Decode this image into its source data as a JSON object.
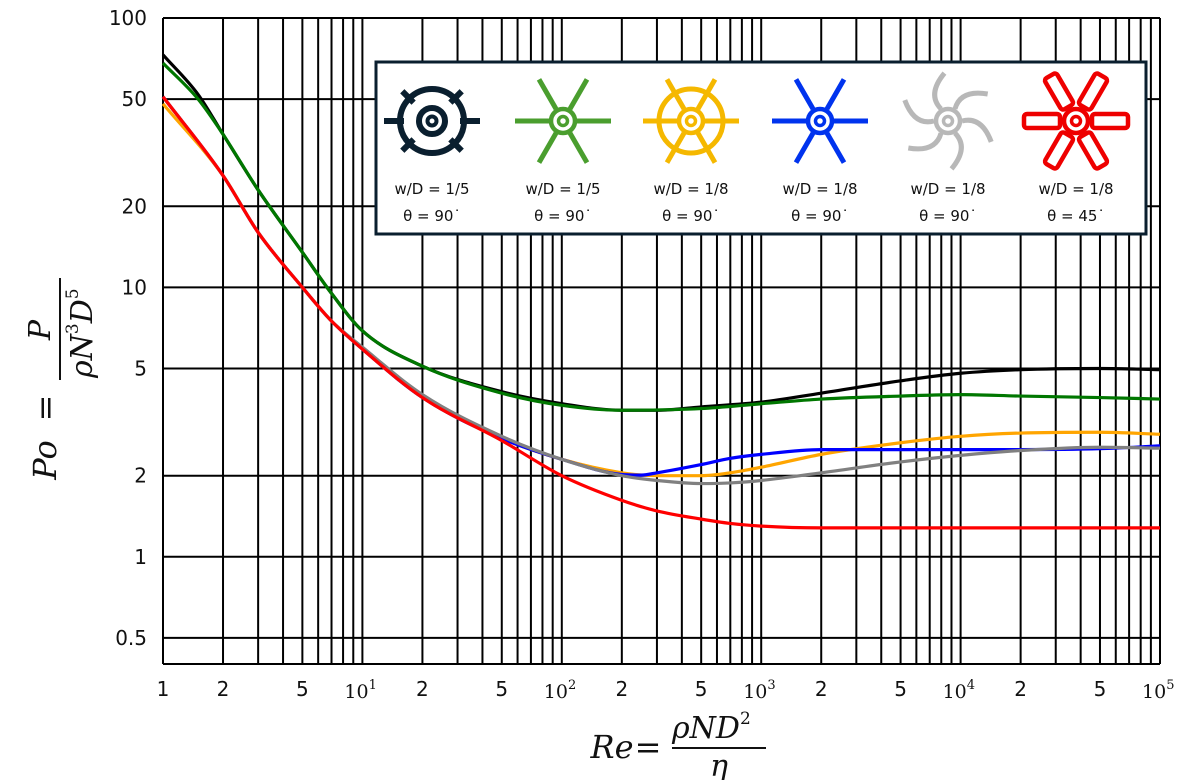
{
  "chart_data": {
    "type": "line",
    "title": "",
    "xscale": "log",
    "yscale": "log",
    "xlim": [
      1,
      100000
    ],
    "ylim": [
      0.4,
      100
    ],
    "grid": true,
    "legend_placement": "top-right",
    "xlabel": {
      "lhs": "Re",
      "eq": "=",
      "num": "ρND",
      "num_exp": "2",
      "den": "η"
    },
    "ylabel": {
      "lhs": "Po",
      "eq": "=",
      "num": "P",
      "den_base": "ρN",
      "den_exp1": "3",
      "den_mid": "D",
      "den_exp2": "5"
    },
    "x_ticks_plain": [
      {
        "value": 1,
        "label": "1"
      },
      {
        "value": 2,
        "label": "2"
      },
      {
        "value": 5,
        "label": "5"
      },
      {
        "value": 20,
        "label": "2"
      },
      {
        "value": 50,
        "label": "5"
      },
      {
        "value": 200,
        "label": "2"
      },
      {
        "value": 500,
        "label": "5"
      },
      {
        "value": 2000,
        "label": "2"
      },
      {
        "value": 5000,
        "label": "5"
      },
      {
        "value": 20000,
        "label": "2"
      },
      {
        "value": 50000,
        "label": "5"
      }
    ],
    "x_ticks_power": [
      {
        "value": 10,
        "base": "10",
        "exp": "1"
      },
      {
        "value": 100,
        "base": "10",
        "exp": "2"
      },
      {
        "value": 1000,
        "base": "10",
        "exp": "3"
      },
      {
        "value": 10000,
        "base": "10",
        "exp": "4"
      },
      {
        "value": 100000,
        "base": "10",
        "exp": "5"
      }
    ],
    "y_ticks": [
      {
        "value": 100,
        "label": "100"
      },
      {
        "value": 50,
        "label": "50"
      },
      {
        "value": 20,
        "label": "20"
      },
      {
        "value": 10,
        "label": "10"
      },
      {
        "value": 5,
        "label": "5"
      },
      {
        "value": 2,
        "label": "2"
      },
      {
        "value": 1,
        "label": "1"
      },
      {
        "value": 0.5,
        "label": "0.5"
      }
    ],
    "x_gridlines": [
      1,
      2,
      3,
      4,
      5,
      6,
      7,
      8,
      9,
      10,
      20,
      30,
      40,
      50,
      60,
      70,
      80,
      90,
      100,
      200,
      300,
      400,
      500,
      600,
      700,
      800,
      900,
      1000,
      2000,
      3000,
      4000,
      5000,
      6000,
      7000,
      8000,
      9000,
      10000,
      20000,
      30000,
      40000,
      50000,
      60000,
      70000,
      80000,
      90000,
      100000
    ],
    "y_gridlines": [
      0.5,
      1,
      2,
      5,
      10,
      20,
      50,
      100
    ],
    "series": [
      {
        "color": "#000000",
        "x": [
          1,
          1.5,
          2,
          3,
          5,
          7,
          10,
          20,
          50,
          100,
          200,
          300,
          500,
          1000,
          2000,
          5000,
          10000,
          20000,
          50000,
          100000
        ],
        "y": [
          73,
          52,
          37,
          23,
          13.5,
          9.5,
          6.9,
          5.1,
          4.1,
          3.7,
          3.5,
          3.5,
          3.6,
          3.75,
          4.05,
          4.5,
          4.8,
          4.95,
          5.0,
          4.95
        ]
      },
      {
        "color": "#007700",
        "x": [
          1,
          1.5,
          2,
          3,
          5,
          7,
          10,
          20,
          50,
          100,
          200,
          500,
          1000,
          2000,
          5000,
          10000,
          20000,
          50000,
          100000
        ],
        "y": [
          68,
          50,
          37,
          23,
          13.5,
          9.5,
          6.9,
          5.1,
          4.05,
          3.65,
          3.5,
          3.55,
          3.7,
          3.85,
          3.95,
          4.0,
          3.95,
          3.9,
          3.85
        ]
      },
      {
        "color": "#ffa500",
        "x": [
          1,
          2,
          3,
          5,
          7,
          10,
          20,
          50,
          100,
          200,
          300,
          500,
          700,
          1000,
          2000,
          5000,
          10000,
          20000,
          50000,
          100000
        ],
        "y": [
          48,
          26,
          16,
          10,
          7.5,
          5.9,
          3.9,
          2.75,
          2.3,
          2.05,
          2.0,
          2.0,
          2.05,
          2.15,
          2.4,
          2.65,
          2.8,
          2.88,
          2.9,
          2.85
        ]
      },
      {
        "color": "#0000ff",
        "x": [
          1,
          2,
          3,
          5,
          7,
          10,
          20,
          50,
          100,
          200,
          250,
          300,
          500,
          700,
          1000,
          2000,
          5000,
          10000,
          20000,
          50000,
          100000
        ],
        "y": [
          51,
          26,
          16,
          10,
          7.5,
          5.9,
          3.9,
          2.75,
          2.3,
          2.02,
          2.01,
          2.05,
          2.2,
          2.32,
          2.4,
          2.5,
          2.5,
          2.5,
          2.5,
          2.52,
          2.58
        ]
      },
      {
        "color": "#808080",
        "x": [
          1,
          2,
          3,
          5,
          7,
          10,
          20,
          50,
          100,
          200,
          300,
          500,
          700,
          1000,
          2000,
          5000,
          10000,
          20000,
          50000,
          100000
        ],
        "y": [
          51,
          26,
          16,
          10,
          7.5,
          6.0,
          4.0,
          2.8,
          2.3,
          2.0,
          1.92,
          1.87,
          1.88,
          1.92,
          2.05,
          2.25,
          2.38,
          2.48,
          2.55,
          2.53
        ]
      },
      {
        "color": "#ff0000",
        "x": [
          1,
          2,
          3,
          5,
          7,
          10,
          20,
          50,
          100,
          200,
          300,
          500,
          700,
          1000,
          2000,
          5000,
          10000,
          20000,
          50000,
          100000
        ],
        "y": [
          51,
          26,
          16,
          10,
          7.5,
          5.9,
          3.9,
          2.7,
          2.0,
          1.62,
          1.48,
          1.38,
          1.33,
          1.3,
          1.28,
          1.28,
          1.28,
          1.28,
          1.28,
          1.28
        ]
      }
    ],
    "legend": [
      {
        "icon": "rushton-turbine-icon",
        "color": "#0a1f2f",
        "w_d": "w/D = 1/5",
        "theta": "θ = 90˙"
      },
      {
        "icon": "six-blade-turbine-icon",
        "color": "#4a9e2e",
        "w_d": "w/D = 1/5",
        "theta": "θ = 90˙"
      },
      {
        "icon": "disc-turbine-icon",
        "color": "#f5b800",
        "w_d": "w/D = 1/8",
        "theta": "θ = 90˙"
      },
      {
        "icon": "six-blade-turbine-icon",
        "color": "#0033ee",
        "w_d": "w/D = 1/8",
        "theta": "θ = 90˙"
      },
      {
        "icon": "curved-blade-turbine-icon",
        "color": "#b8b8b8",
        "w_d": "w/D = 1/8",
        "theta": "θ = 90˙"
      },
      {
        "icon": "pitched-blade-turbine-icon",
        "color": "#ee0000",
        "w_d": "w/D = 1/8",
        "theta": "θ = 45˙"
      }
    ]
  }
}
